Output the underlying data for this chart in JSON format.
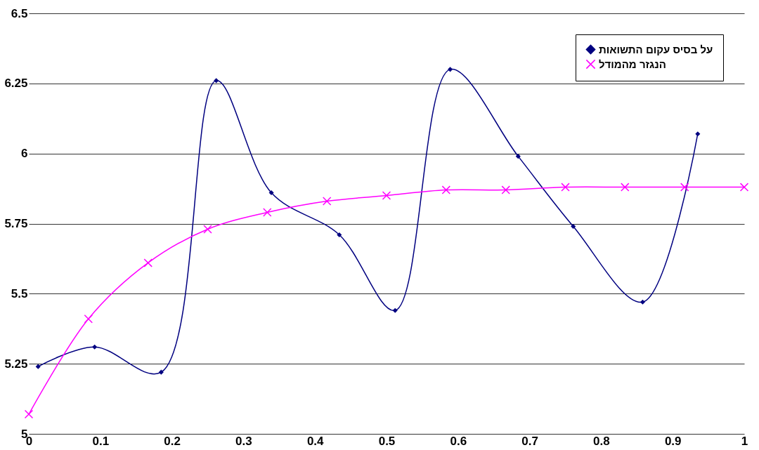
{
  "chart_data": {
    "type": "line",
    "xlim": [
      0,
      1
    ],
    "xticks": [
      0,
      0.1,
      0.2,
      0.3,
      0.4,
      0.5,
      0.6,
      0.7,
      0.8,
      0.9,
      1
    ],
    "ylim": [
      5,
      6.5
    ],
    "yticks": [
      5,
      5.25,
      5.5,
      5.75,
      6,
      6.25,
      6.5
    ],
    "grid": "y",
    "legend": "top right",
    "series": [
      {
        "name": "על בסיס עקום התשואות",
        "color": "#000080",
        "marker": "diamond",
        "x": [
          0.013,
          0.092,
          0.185,
          0.262,
          0.339,
          0.434,
          0.512,
          0.589,
          0.684,
          0.761,
          0.858,
          0.935
        ],
        "values": [
          5.24,
          5.31,
          5.22,
          6.26,
          5.86,
          5.71,
          5.44,
          6.3,
          5.99,
          5.74,
          5.47,
          6.07
        ]
      },
      {
        "name": "הנגזר מהמודל",
        "color": "#ff00ff",
        "marker": "cross",
        "x": [
          0,
          0.0833,
          0.1667,
          0.25,
          0.3333,
          0.4167,
          0.5,
          0.5833,
          0.6667,
          0.75,
          0.8333,
          0.9167,
          1
        ],
        "values": [
          5.07,
          5.41,
          5.61,
          5.73,
          5.79,
          5.83,
          5.85,
          5.87,
          5.87,
          5.88,
          5.88,
          5.88,
          5.88
        ]
      }
    ]
  }
}
